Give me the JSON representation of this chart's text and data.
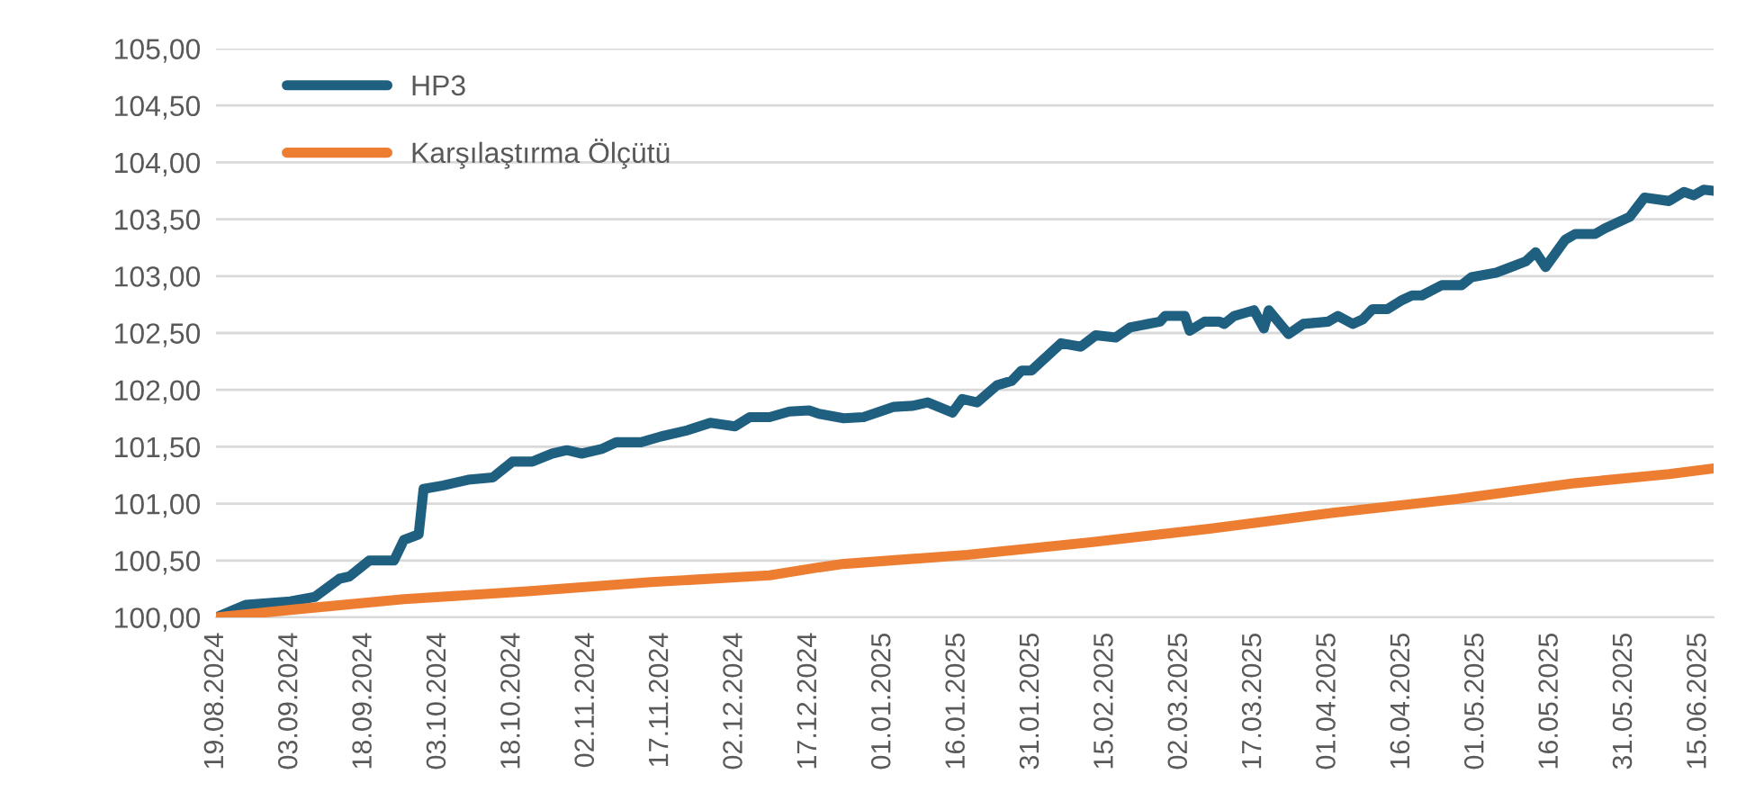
{
  "chart_data": {
    "type": "line",
    "series": [
      {
        "name": "HP3",
        "color": "#1f5f80",
        "x": [
          "2024-08-19",
          "2024-08-25",
          "2024-09-03",
          "2024-09-08",
          "2024-09-13",
          "2024-09-15",
          "2024-09-19",
          "2024-09-24",
          "2024-09-26",
          "2024-09-29",
          "2024-09-30",
          "2024-10-04",
          "2024-10-09",
          "2024-10-14",
          "2024-10-18",
          "2024-10-22",
          "2024-10-26",
          "2024-10-29",
          "2024-11-01",
          "2024-11-05",
          "2024-11-08",
          "2024-11-13",
          "2024-11-17",
          "2024-11-22",
          "2024-11-27",
          "2024-12-02",
          "2024-12-05",
          "2024-12-09",
          "2024-12-13",
          "2024-12-17",
          "2024-12-19",
          "2024-12-24",
          "2024-12-28",
          "2025-01-03",
          "2025-01-07",
          "2025-01-10",
          "2025-01-15",
          "2025-01-17",
          "2025-01-20",
          "2025-01-24",
          "2025-01-27",
          "2025-01-29",
          "2025-01-31",
          "2025-02-06",
          "2025-02-10",
          "2025-02-13",
          "2025-02-17",
          "2025-02-20",
          "2025-02-26",
          "2025-02-27",
          "2025-03-03",
          "2025-03-04",
          "2025-03-07",
          "2025-03-10",
          "2025-03-11",
          "2025-03-13",
          "2025-03-17",
          "2025-03-19",
          "2025-03-20",
          "2025-03-24",
          "2025-03-27",
          "2025-04-01",
          "2025-04-03",
          "2025-04-06",
          "2025-04-08",
          "2025-04-10",
          "2025-04-13",
          "2025-04-16",
          "2025-04-18",
          "2025-04-20",
          "2025-04-24",
          "2025-04-28",
          "2025-04-30",
          "2025-05-05",
          "2025-05-08",
          "2025-05-11",
          "2025-05-13",
          "2025-05-15",
          "2025-05-19",
          "2025-05-21",
          "2025-05-25",
          "2025-05-27",
          "2025-06-01",
          "2025-06-04",
          "2025-06-09",
          "2025-06-12",
          "2025-06-14",
          "2025-06-16",
          "2025-06-18"
        ],
        "values": [
          100.0,
          100.11,
          100.14,
          100.18,
          100.34,
          100.36,
          100.5,
          100.5,
          100.68,
          100.73,
          101.13,
          101.16,
          101.21,
          101.23,
          101.37,
          101.37,
          101.44,
          101.47,
          101.44,
          101.48,
          101.54,
          101.54,
          101.59,
          101.64,
          101.71,
          101.68,
          101.76,
          101.76,
          101.81,
          101.82,
          101.79,
          101.75,
          101.76,
          101.85,
          101.86,
          101.89,
          101.8,
          101.92,
          101.89,
          102.04,
          102.08,
          102.17,
          102.17,
          102.41,
          102.38,
          102.48,
          102.46,
          102.55,
          102.6,
          102.65,
          102.65,
          102.52,
          102.6,
          102.6,
          102.58,
          102.65,
          102.7,
          102.54,
          102.7,
          102.49,
          102.58,
          102.6,
          102.65,
          102.58,
          102.62,
          102.71,
          102.71,
          102.79,
          102.83,
          102.83,
          102.92,
          102.92,
          102.99,
          103.03,
          103.08,
          103.13,
          103.21,
          103.08,
          103.32,
          103.37,
          103.37,
          103.42,
          103.52,
          103.69,
          103.66,
          103.74,
          103.71,
          103.76,
          103.75
        ]
      },
      {
        "name": "Karşılaştırma Ölçütü",
        "color": "#ed7d31",
        "x": [
          "2024-08-19",
          "2024-09-04",
          "2024-09-26",
          "2024-10-21",
          "2024-11-15",
          "2024-12-09",
          "2024-12-19",
          "2024-12-24",
          "2025-01-18",
          "2025-02-12",
          "2025-03-08",
          "2025-04-02",
          "2025-04-27",
          "2025-05-21",
          "2025-06-09",
          "2025-06-18"
        ],
        "values": [
          100.0,
          100.07,
          100.16,
          100.23,
          100.31,
          100.37,
          100.44,
          100.47,
          100.55,
          100.66,
          100.78,
          100.92,
          101.04,
          101.18,
          101.26,
          101.31
        ]
      }
    ],
    "xlim": [
      "2024-08-19",
      "2025-06-18"
    ],
    "xticks": [
      {
        "value": "2024-08-19",
        "label": "19.08.2024"
      },
      {
        "value": "2024-09-03",
        "label": "03.09.2024"
      },
      {
        "value": "2024-09-18",
        "label": "18.09.2024"
      },
      {
        "value": "2024-10-03",
        "label": "03.10.2024"
      },
      {
        "value": "2024-10-18",
        "label": "18.10.2024"
      },
      {
        "value": "2024-11-02",
        "label": "02.11.2024"
      },
      {
        "value": "2024-11-17",
        "label": "17.11.2024"
      },
      {
        "value": "2024-12-02",
        "label": "02.12.2024"
      },
      {
        "value": "2024-12-17",
        "label": "17.12.2024"
      },
      {
        "value": "2025-01-01",
        "label": "01.01.2025"
      },
      {
        "value": "2025-01-16",
        "label": "16.01.2025"
      },
      {
        "value": "2025-01-31",
        "label": "31.01.2025"
      },
      {
        "value": "2025-02-15",
        "label": "15.02.2025"
      },
      {
        "value": "2025-03-02",
        "label": "02.03.2025"
      },
      {
        "value": "2025-03-17",
        "label": "17.03.2025"
      },
      {
        "value": "2025-04-01",
        "label": "01.04.2025"
      },
      {
        "value": "2025-04-16",
        "label": "16.04.2025"
      },
      {
        "value": "2025-05-01",
        "label": "01.05.2025"
      },
      {
        "value": "2025-05-16",
        "label": "16.05.2025"
      },
      {
        "value": "2025-05-31",
        "label": "31.05.2025"
      },
      {
        "value": "2025-06-15",
        "label": "15.06.2025"
      }
    ],
    "ylim": [
      100,
      105
    ],
    "yticks": [
      {
        "value": 100,
        "label": "100,00"
      },
      {
        "value": 100.5,
        "label": "100,50"
      },
      {
        "value": 101,
        "label": "101,00"
      },
      {
        "value": 101.5,
        "label": "101,50"
      },
      {
        "value": 102,
        "label": "102,00"
      },
      {
        "value": 102.5,
        "label": "102,50"
      },
      {
        "value": 103,
        "label": "103,00"
      },
      {
        "value": 103.5,
        "label": "103,50"
      },
      {
        "value": 104,
        "label": "104,00"
      },
      {
        "value": 104.5,
        "label": "104,50"
      },
      {
        "value": 105,
        "label": "105,00"
      }
    ],
    "grid": "y",
    "legend": "top left",
    "line_style": "solid",
    "marker": "none"
  }
}
